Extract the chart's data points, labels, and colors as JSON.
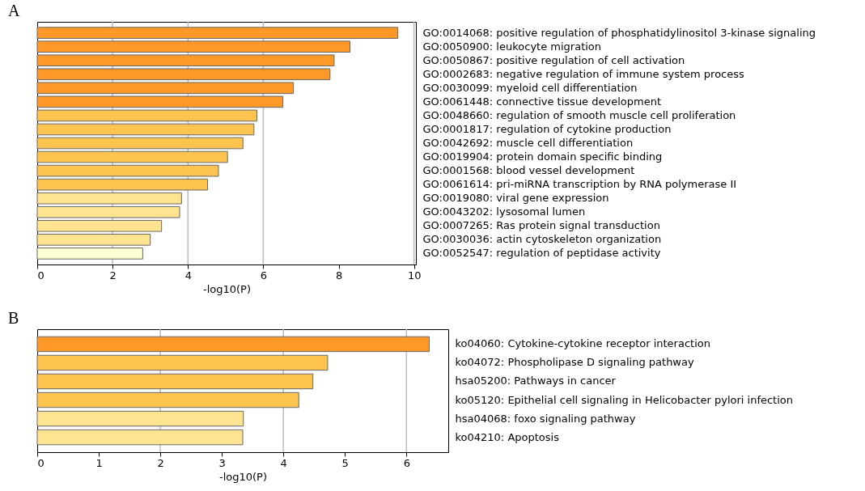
{
  "chart_data": [
    {
      "type": "bar",
      "orientation": "horizontal",
      "title": "A",
      "xlabel": "-log10(P)",
      "xlim": [
        0,
        10.05
      ],
      "xticks": [
        0,
        2,
        4,
        6,
        8,
        10
      ],
      "grid": false,
      "categories": [
        "GO:0014068: positive regulation of phosphatidylinositol 3-kinase signaling",
        "GO:0050900: leukocyte migration",
        "GO:0050867: positive regulation of cell activation",
        "GO:0002683: negative regulation of immune system process",
        "GO:0030099: myeloid cell differentiation",
        "GO:0061448: connective tissue development",
        "GO:0048660: regulation of smooth muscle cell proliferation",
        "GO:0001817: regulation of cytokine production",
        "GO:0042692: muscle cell differentiation",
        "GO:0019904: protein domain specific binding",
        "GO:0001568: blood vessel development",
        "GO:0061614: pri-miRNA transcription by RNA polymerase II",
        "GO:0019080: viral gene expression",
        "GO:0043202: lysosomal lumen",
        "GO:0007265: Ras protein signal transduction",
        "GO:0030036: actin cytoskeleton organization",
        "GO:0052547: regulation of peptidase activity"
      ],
      "values": [
        9.57,
        8.3,
        7.88,
        7.77,
        6.8,
        6.52,
        5.83,
        5.75,
        5.46,
        5.05,
        4.81,
        4.52,
        3.83,
        3.78,
        3.3,
        3.0,
        2.8
      ],
      "colors": [
        "#fe9929",
        "#fe9929",
        "#fe9929",
        "#fe9929",
        "#fe9929",
        "#fe9929",
        "#fec44f",
        "#fec44f",
        "#fec44f",
        "#fec44f",
        "#fec44f",
        "#fec44f",
        "#fee391",
        "#fee391",
        "#fee391",
        "#fee391",
        "#ffffd4"
      ],
      "ref_lines": [
        {
          "axis": "x",
          "value": 2,
          "color": "#bbbbbb"
        },
        {
          "axis": "x",
          "value": 4,
          "color": "#bbbbbb"
        },
        {
          "axis": "x",
          "value": 6,
          "color": "#bbbbbb"
        },
        {
          "axis": "x",
          "value": 10,
          "color": "#bbbbbb"
        }
      ]
    },
    {
      "type": "bar",
      "orientation": "horizontal",
      "title": "B",
      "xlabel": "-log10(P)",
      "xlim": [
        0,
        6.68
      ],
      "xticks": [
        0,
        1,
        2,
        3,
        4,
        5,
        6
      ],
      "grid": false,
      "categories": [
        "ko04060: Cytokine-cytokine receptor interaction",
        "ko04072: Phospholipase D signaling pathway",
        "hsa05200: Pathways in cancer",
        "ko05120: Epithelial cell signaling in Helicobacter pylori infection",
        "hsa04068: foxo signaling pathway",
        "ko04210: Apoptosis"
      ],
      "values": [
        6.37,
        4.72,
        4.48,
        4.25,
        3.35,
        3.34
      ],
      "colors": [
        "#fe9929",
        "#fec44f",
        "#fec44f",
        "#fec44f",
        "#fee391",
        "#fee391"
      ],
      "ref_lines": [
        {
          "axis": "x",
          "value": 2,
          "color": "#bbbbbb"
        },
        {
          "axis": "x",
          "value": 4,
          "color": "#bbbbbb"
        },
        {
          "axis": "x",
          "value": 6,
          "color": "#bbbbbb"
        }
      ]
    }
  ]
}
